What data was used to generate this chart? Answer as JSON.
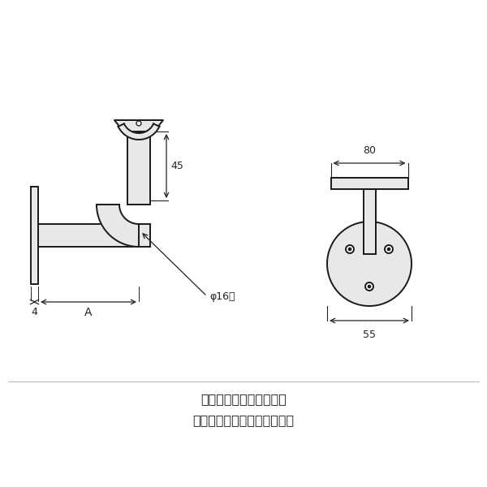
{
  "bg_color": "#ffffff",
  "line_color": "#1a1a1a",
  "fill_color": "#e8e8e8",
  "dim_color": "#222222",
  "footer_line1": "この画像は代表画像です",
  "footer_line2": "詳細は仕様をご確認ください",
  "label_45": "45",
  "label_phi16": "φ16軸",
  "label_A": "A",
  "label_4": "4",
  "label_80": "80",
  "label_55": "55"
}
